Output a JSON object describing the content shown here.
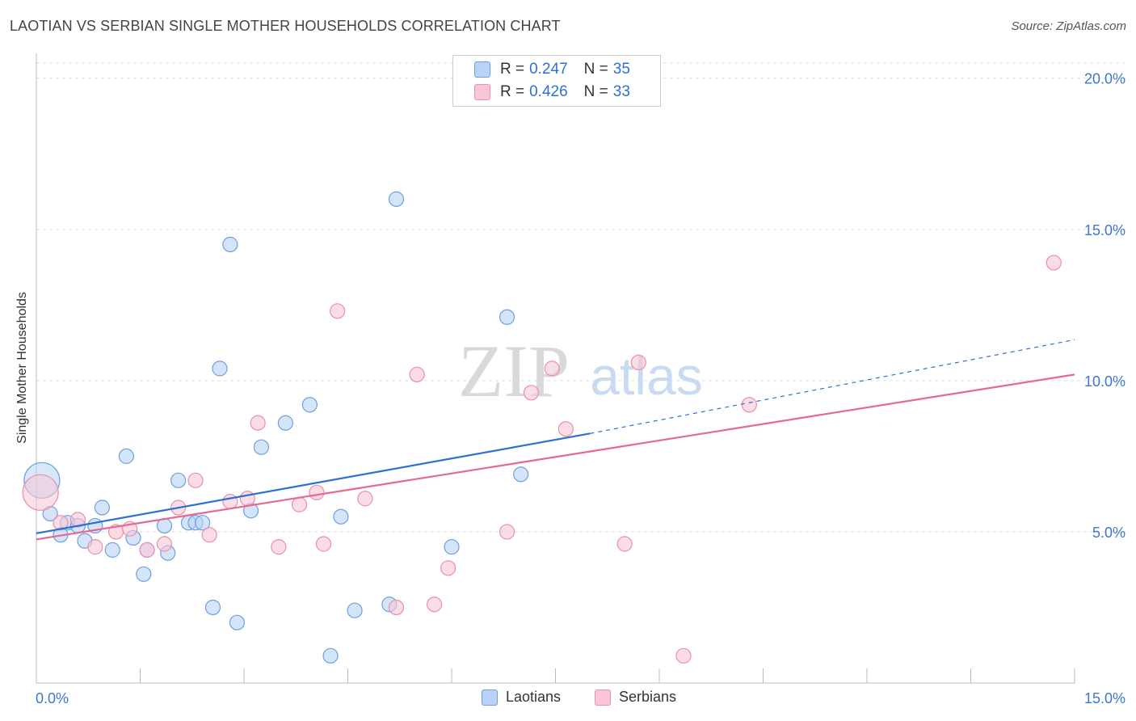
{
  "title": "LAOTIAN VS SERBIAN SINGLE MOTHER HOUSEHOLDS CORRELATION CHART",
  "source": "Source: ZipAtlas.com",
  "watermark": {
    "zip": "ZIP",
    "atlas": "atlas"
  },
  "legend_top": [
    {
      "r_label": "R = ",
      "r_value": "0.247",
      "n_label": "N = ",
      "n_value": "35"
    },
    {
      "r_label": "R = ",
      "r_value": "0.426",
      "n_label": "N = ",
      "n_value": "33"
    }
  ],
  "legend_bottom": [
    "Laotians",
    "Serbians"
  ],
  "colors": {
    "laotian_fill": "#b8d3f5",
    "laotian_stroke": "#6f9fde",
    "laotian_line": "#2e6fd2",
    "serbian_fill": "#f9c6d6",
    "serbian_stroke": "#ea8fac",
    "serbian_line": "#e46a92",
    "tick_label": "#3f76cf",
    "grid": "#dddddd"
  },
  "chart_data": {
    "type": "scatter",
    "title": "LAOTIAN VS SERBIAN SINGLE MOTHER HOUSEHOLDS CORRELATION CHART",
    "xlabel": "",
    "ylabel": "Single Mother Households",
    "xlim": [
      0,
      15
    ],
    "ylim": [
      0,
      20.5
    ],
    "x_tick_labels": [
      "0.0%",
      "15.0%"
    ],
    "y_ticks": [
      5,
      10,
      15,
      20
    ],
    "y_tick_labels": [
      "5.0%",
      "10.0%",
      "15.0%",
      "20.0%"
    ],
    "series": [
      {
        "name": "Laotians",
        "r": 0.247,
        "n": 35,
        "trend": {
          "x0": 0,
          "y0": 4.95,
          "x1": 8.0,
          "y1": 8.25,
          "dashed_to_x": 15.0,
          "dashed_to_y": 11.35
        },
        "points": [
          {
            "x": 0.08,
            "y": 6.7,
            "big": true
          },
          {
            "x": 0.2,
            "y": 5.6
          },
          {
            "x": 0.35,
            "y": 4.9
          },
          {
            "x": 0.45,
            "y": 5.3
          },
          {
            "x": 0.6,
            "y": 5.2
          },
          {
            "x": 0.7,
            "y": 4.7
          },
          {
            "x": 0.85,
            "y": 5.2
          },
          {
            "x": 0.95,
            "y": 5.8
          },
          {
            "x": 1.1,
            "y": 4.4
          },
          {
            "x": 1.3,
            "y": 7.5
          },
          {
            "x": 1.4,
            "y": 4.8
          },
          {
            "x": 1.55,
            "y": 3.6
          },
          {
            "x": 1.6,
            "y": 4.4
          },
          {
            "x": 1.85,
            "y": 5.2
          },
          {
            "x": 1.9,
            "y": 4.3
          },
          {
            "x": 2.05,
            "y": 6.7
          },
          {
            "x": 2.2,
            "y": 5.3
          },
          {
            "x": 2.3,
            "y": 5.3
          },
          {
            "x": 2.4,
            "y": 5.3
          },
          {
            "x": 2.55,
            "y": 2.5
          },
          {
            "x": 2.65,
            "y": 10.4
          },
          {
            "x": 2.8,
            "y": 14.5
          },
          {
            "x": 2.9,
            "y": 2.0
          },
          {
            "x": 3.1,
            "y": 5.7
          },
          {
            "x": 3.25,
            "y": 7.8
          },
          {
            "x": 3.6,
            "y": 8.6
          },
          {
            "x": 3.95,
            "y": 9.2
          },
          {
            "x": 4.25,
            "y": 0.9
          },
          {
            "x": 4.4,
            "y": 5.5
          },
          {
            "x": 4.6,
            "y": 2.4
          },
          {
            "x": 5.1,
            "y": 2.6
          },
          {
            "x": 5.2,
            "y": 16.0
          },
          {
            "x": 6.0,
            "y": 4.5
          },
          {
            "x": 6.8,
            "y": 12.1
          },
          {
            "x": 7.0,
            "y": 6.9
          }
        ]
      },
      {
        "name": "Serbians",
        "r": 0.426,
        "n": 33,
        "trend": {
          "x0": 0,
          "y0": 4.75,
          "x1": 15.0,
          "y1": 10.2
        },
        "points": [
          {
            "x": 0.06,
            "y": 6.3,
            "big": true
          },
          {
            "x": 0.35,
            "y": 5.3
          },
          {
            "x": 0.6,
            "y": 5.4
          },
          {
            "x": 0.85,
            "y": 4.5
          },
          {
            "x": 1.15,
            "y": 5.0
          },
          {
            "x": 1.35,
            "y": 5.1
          },
          {
            "x": 1.6,
            "y": 4.4
          },
          {
            "x": 1.85,
            "y": 4.6
          },
          {
            "x": 2.05,
            "y": 5.8
          },
          {
            "x": 2.3,
            "y": 6.7
          },
          {
            "x": 2.5,
            "y": 4.9
          },
          {
            "x": 2.8,
            "y": 6.0
          },
          {
            "x": 3.05,
            "y": 6.1
          },
          {
            "x": 3.2,
            "y": 8.6
          },
          {
            "x": 3.5,
            "y": 4.5
          },
          {
            "x": 3.8,
            "y": 5.9
          },
          {
            "x": 4.05,
            "y": 6.3
          },
          {
            "x": 4.15,
            "y": 4.6
          },
          {
            "x": 4.35,
            "y": 12.3
          },
          {
            "x": 4.75,
            "y": 6.1
          },
          {
            "x": 5.2,
            "y": 2.5
          },
          {
            "x": 5.5,
            "y": 10.2
          },
          {
            "x": 5.75,
            "y": 2.6
          },
          {
            "x": 5.95,
            "y": 3.8
          },
          {
            "x": 6.8,
            "y": 5.0
          },
          {
            "x": 7.15,
            "y": 9.6
          },
          {
            "x": 7.45,
            "y": 10.4
          },
          {
            "x": 7.65,
            "y": 8.4
          },
          {
            "x": 8.5,
            "y": 4.6
          },
          {
            "x": 8.7,
            "y": 10.6
          },
          {
            "x": 9.35,
            "y": 0.9
          },
          {
            "x": 10.3,
            "y": 9.2
          },
          {
            "x": 14.7,
            "y": 13.9
          }
        ]
      }
    ]
  }
}
